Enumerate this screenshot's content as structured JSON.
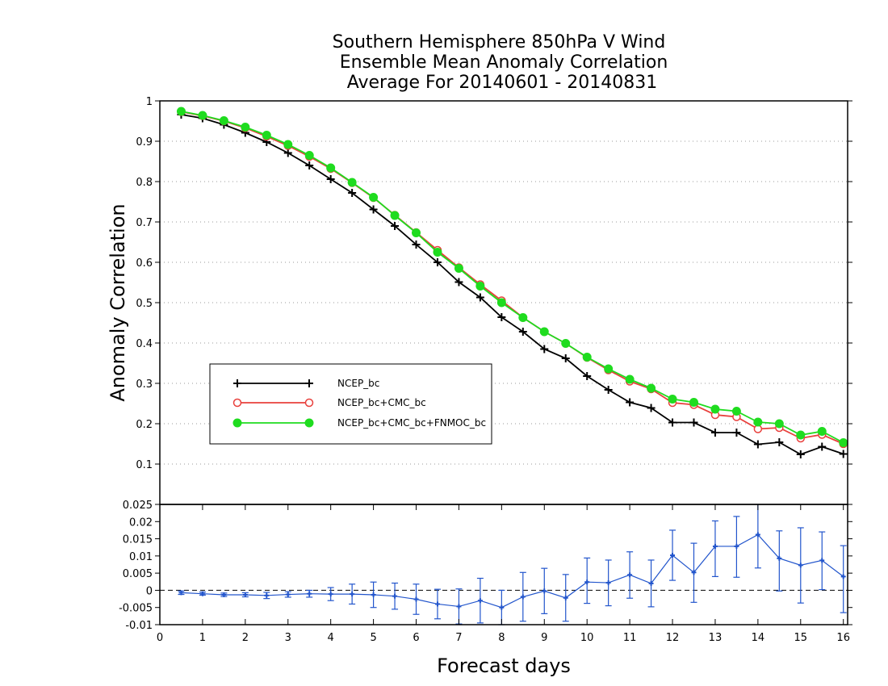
{
  "title_lines": [
    "Southern Hemisphere 850hPa V Wind",
    "Ensemble Mean Anomaly Correlation",
    "Average For 20140601 - 20140831"
  ],
  "chart_data": [
    {
      "type": "line",
      "panel": "main",
      "ylabel": "Anomaly Correlation",
      "xlim": [
        0,
        16.1
      ],
      "ylim": [
        0,
        1
      ],
      "y_ticks": [
        "0.1",
        "0.2",
        "0.3",
        "0.4",
        "0.5",
        "0.6",
        "0.7",
        "0.8",
        "0.9",
        "1"
      ],
      "grid": "horizontal dotted",
      "legend_position": "lower-left",
      "x": [
        0.5,
        1,
        1.5,
        2,
        2.5,
        3,
        3.5,
        4,
        4.5,
        5,
        5.5,
        6,
        6.5,
        7,
        7.5,
        8,
        8.5,
        9,
        9.5,
        10,
        10.5,
        11,
        11.5,
        12,
        12.5,
        13,
        13.5,
        14,
        14.5,
        15,
        15.5,
        16
      ],
      "series": [
        {
          "name": "NCEP_bc",
          "color": "#000000",
          "marker": "plus",
          "values": [
            0.966,
            0.957,
            0.941,
            0.921,
            0.898,
            0.871,
            0.84,
            0.806,
            0.772,
            0.731,
            0.69,
            0.644,
            0.6,
            0.551,
            0.513,
            0.464,
            0.428,
            0.385,
            0.362,
            0.318,
            0.284,
            0.253,
            0.239,
            0.203,
            0.203,
            0.178,
            0.178,
            0.149,
            0.154,
            0.124,
            0.143,
            0.125
          ]
        },
        {
          "name": "NCEP_bc+CMC_bc",
          "color": "#e8403c",
          "marker": "open-circle",
          "values": [
            0.973,
            0.963,
            0.95,
            0.933,
            0.912,
            0.889,
            0.862,
            0.832,
            0.797,
            0.76,
            0.717,
            0.674,
            0.63,
            0.587,
            0.545,
            0.505,
            0.463,
            0.428,
            0.399,
            0.364,
            0.333,
            0.305,
            0.286,
            0.252,
            0.247,
            0.222,
            0.217,
            0.187,
            0.19,
            0.164,
            0.173,
            0.15
          ]
        },
        {
          "name": "NCEP_bc+CMC_bc+FNMOC_bc",
          "color": "#1fdc1f",
          "marker": "filled-circle",
          "values": [
            0.974,
            0.964,
            0.951,
            0.935,
            0.915,
            0.892,
            0.865,
            0.834,
            0.798,
            0.761,
            0.716,
            0.673,
            0.625,
            0.585,
            0.541,
            0.5,
            0.463,
            0.428,
            0.399,
            0.365,
            0.336,
            0.31,
            0.288,
            0.261,
            0.253,
            0.236,
            0.231,
            0.204,
            0.2,
            0.172,
            0.181,
            0.153
          ]
        }
      ]
    },
    {
      "type": "line",
      "panel": "difference",
      "xlabel": "Forecast days",
      "xlim": [
        0,
        16.1
      ],
      "ylim": [
        -0.01,
        0.025
      ],
      "x_ticks": [
        "0",
        "1",
        "2",
        "3",
        "4",
        "5",
        "6",
        "7",
        "8",
        "9",
        "10",
        "11",
        "12",
        "13",
        "14",
        "15",
        "16"
      ],
      "y_ticks": [
        "-0.01",
        "-0.005",
        "0",
        "0.005",
        "0.01",
        "0.015",
        "0.02",
        "0.025"
      ],
      "zero_line": "dashed",
      "x": [
        0.5,
        1,
        1.5,
        2,
        2.5,
        3,
        3.5,
        4,
        4.5,
        5,
        5.5,
        6,
        6.5,
        7,
        7.5,
        8,
        8.5,
        9,
        9.5,
        10,
        10.5,
        11,
        11.5,
        12,
        12.5,
        13,
        13.5,
        14,
        14.5,
        15,
        15.5,
        16
      ],
      "series": [
        {
          "color": "#2255cc",
          "marker": "plus",
          "values": [
            -0.0007,
            -0.001,
            -0.0013,
            -0.0013,
            -0.0015,
            -0.0012,
            -0.001,
            -0.0011,
            -0.0011,
            -0.0013,
            -0.0017,
            -0.0026,
            -0.004,
            -0.0047,
            -0.003,
            -0.005,
            -0.0019,
            -0.0002,
            -0.0022,
            0.0024,
            0.0022,
            0.0045,
            0.002,
            0.0102,
            0.0052,
            0.0128,
            0.0128,
            0.0162,
            0.0093,
            0.0073,
            0.0087,
            0.004
          ],
          "error_low": [
            -0.0012,
            -0.0014,
            -0.0018,
            -0.0019,
            -0.0024,
            -0.002,
            -0.002,
            -0.003,
            -0.004,
            -0.005,
            -0.0055,
            -0.007,
            -0.0083,
            -0.0098,
            -0.0095,
            -0.01,
            -0.009,
            -0.0068,
            -0.009,
            -0.0038,
            -0.0045,
            -0.0023,
            -0.0048,
            0.0029,
            -0.0035,
            0.004,
            0.0038,
            0.0065,
            -0.0002,
            -0.0037,
            0.0002,
            -0.0065
          ],
          "error_high": [
            -0.0002,
            -0.0005,
            -0.0008,
            -0.0007,
            -0.0006,
            -0.0004,
            0.0,
            0.0008,
            0.0018,
            0.0024,
            0.0021,
            0.0018,
            0.0003,
            0.0004,
            0.0035,
            0.0,
            0.0052,
            0.0064,
            0.0046,
            0.0094,
            0.0088,
            0.0112,
            0.0088,
            0.0175,
            0.0137,
            0.0202,
            0.0215,
            0.026,
            0.0173,
            0.0182,
            0.017,
            0.013
          ]
        }
      ]
    }
  ]
}
